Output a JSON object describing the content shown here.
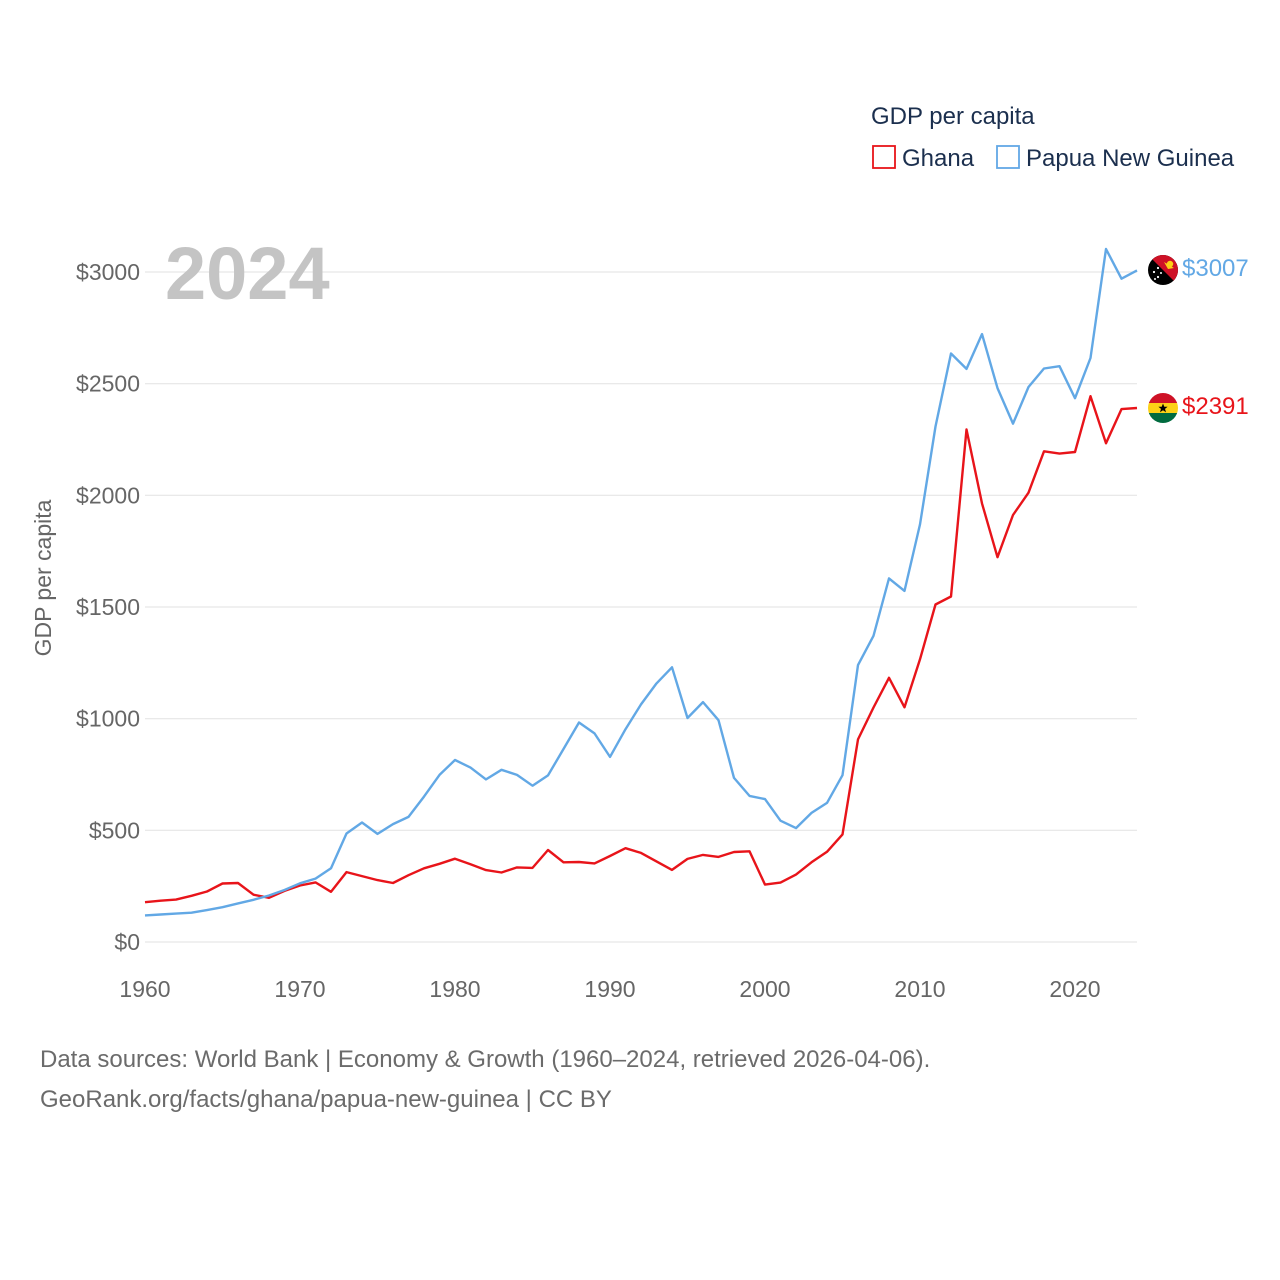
{
  "chart_data": {
    "type": "line",
    "ylabel": "GDP per capita",
    "year_label": "2024",
    "legend_title": "GDP per capita",
    "x_ticks": [
      "1960",
      "1970",
      "1980",
      "1990",
      "2000",
      "2010",
      "2020"
    ],
    "y_ticks": [
      "$0",
      "$500",
      "$1000",
      "$1500",
      "$2000",
      "$2500",
      "$3000"
    ],
    "xlim": [
      1960,
      2024
    ],
    "ylim": [
      0,
      3000
    ],
    "start_year": 1960,
    "series": [
      {
        "name": "Ghana",
        "color": "#e8141a",
        "end_label": "$2391",
        "flag_icon": "ghana-flag-icon",
        "values": [
          178,
          185,
          190,
          207,
          226,
          262,
          264,
          212,
          198,
          229,
          253,
          267,
          225,
          313,
          295,
          277,
          264,
          299,
          330,
          350,
          373,
          348,
          322,
          311,
          334,
          332,
          412,
          357,
          358,
          352,
          385,
          420,
          399,
          361,
          323,
          372,
          390,
          381,
          403,
          406,
          257,
          266,
          302,
          357,
          404,
          482,
          907,
          1050,
          1183,
          1051,
          1266,
          1511,
          1547,
          2295,
          1964,
          1723,
          1912,
          2012,
          2197,
          2187,
          2194,
          2444,
          2233,
          2386,
          2391
        ]
      },
      {
        "name": "Papua New Guinea",
        "color": "#62a8e5",
        "end_label": "$3007",
        "flag_icon": "papua-new-guinea-flag-icon",
        "values": [
          119,
          123,
          127,
          131,
          143,
          156,
          173,
          189,
          208,
          233,
          263,
          284,
          330,
          486,
          535,
          484,
          528,
          560,
          651,
          748,
          815,
          781,
          728,
          771,
          748,
          700,
          746,
          864,
          983,
          934,
          829,
          953,
          1064,
          1158,
          1230,
          1003,
          1074,
          993,
          735,
          654,
          640,
          543,
          510,
          578,
          623,
          747,
          1240,
          1371,
          1628,
          1572,
          1870,
          2308,
          2635,
          2566,
          2722,
          2480,
          2321,
          2485,
          2568,
          2578,
          2435,
          2615,
          3103,
          2970,
          3007
        ]
      }
    ]
  },
  "footer": {
    "line1": "Data sources: World Bank | Economy & Growth (1960–2024, retrieved 2026-04-06).",
    "line2": "GeoRank.org/facts/ghana/papua-new-guinea | CC BY"
  }
}
